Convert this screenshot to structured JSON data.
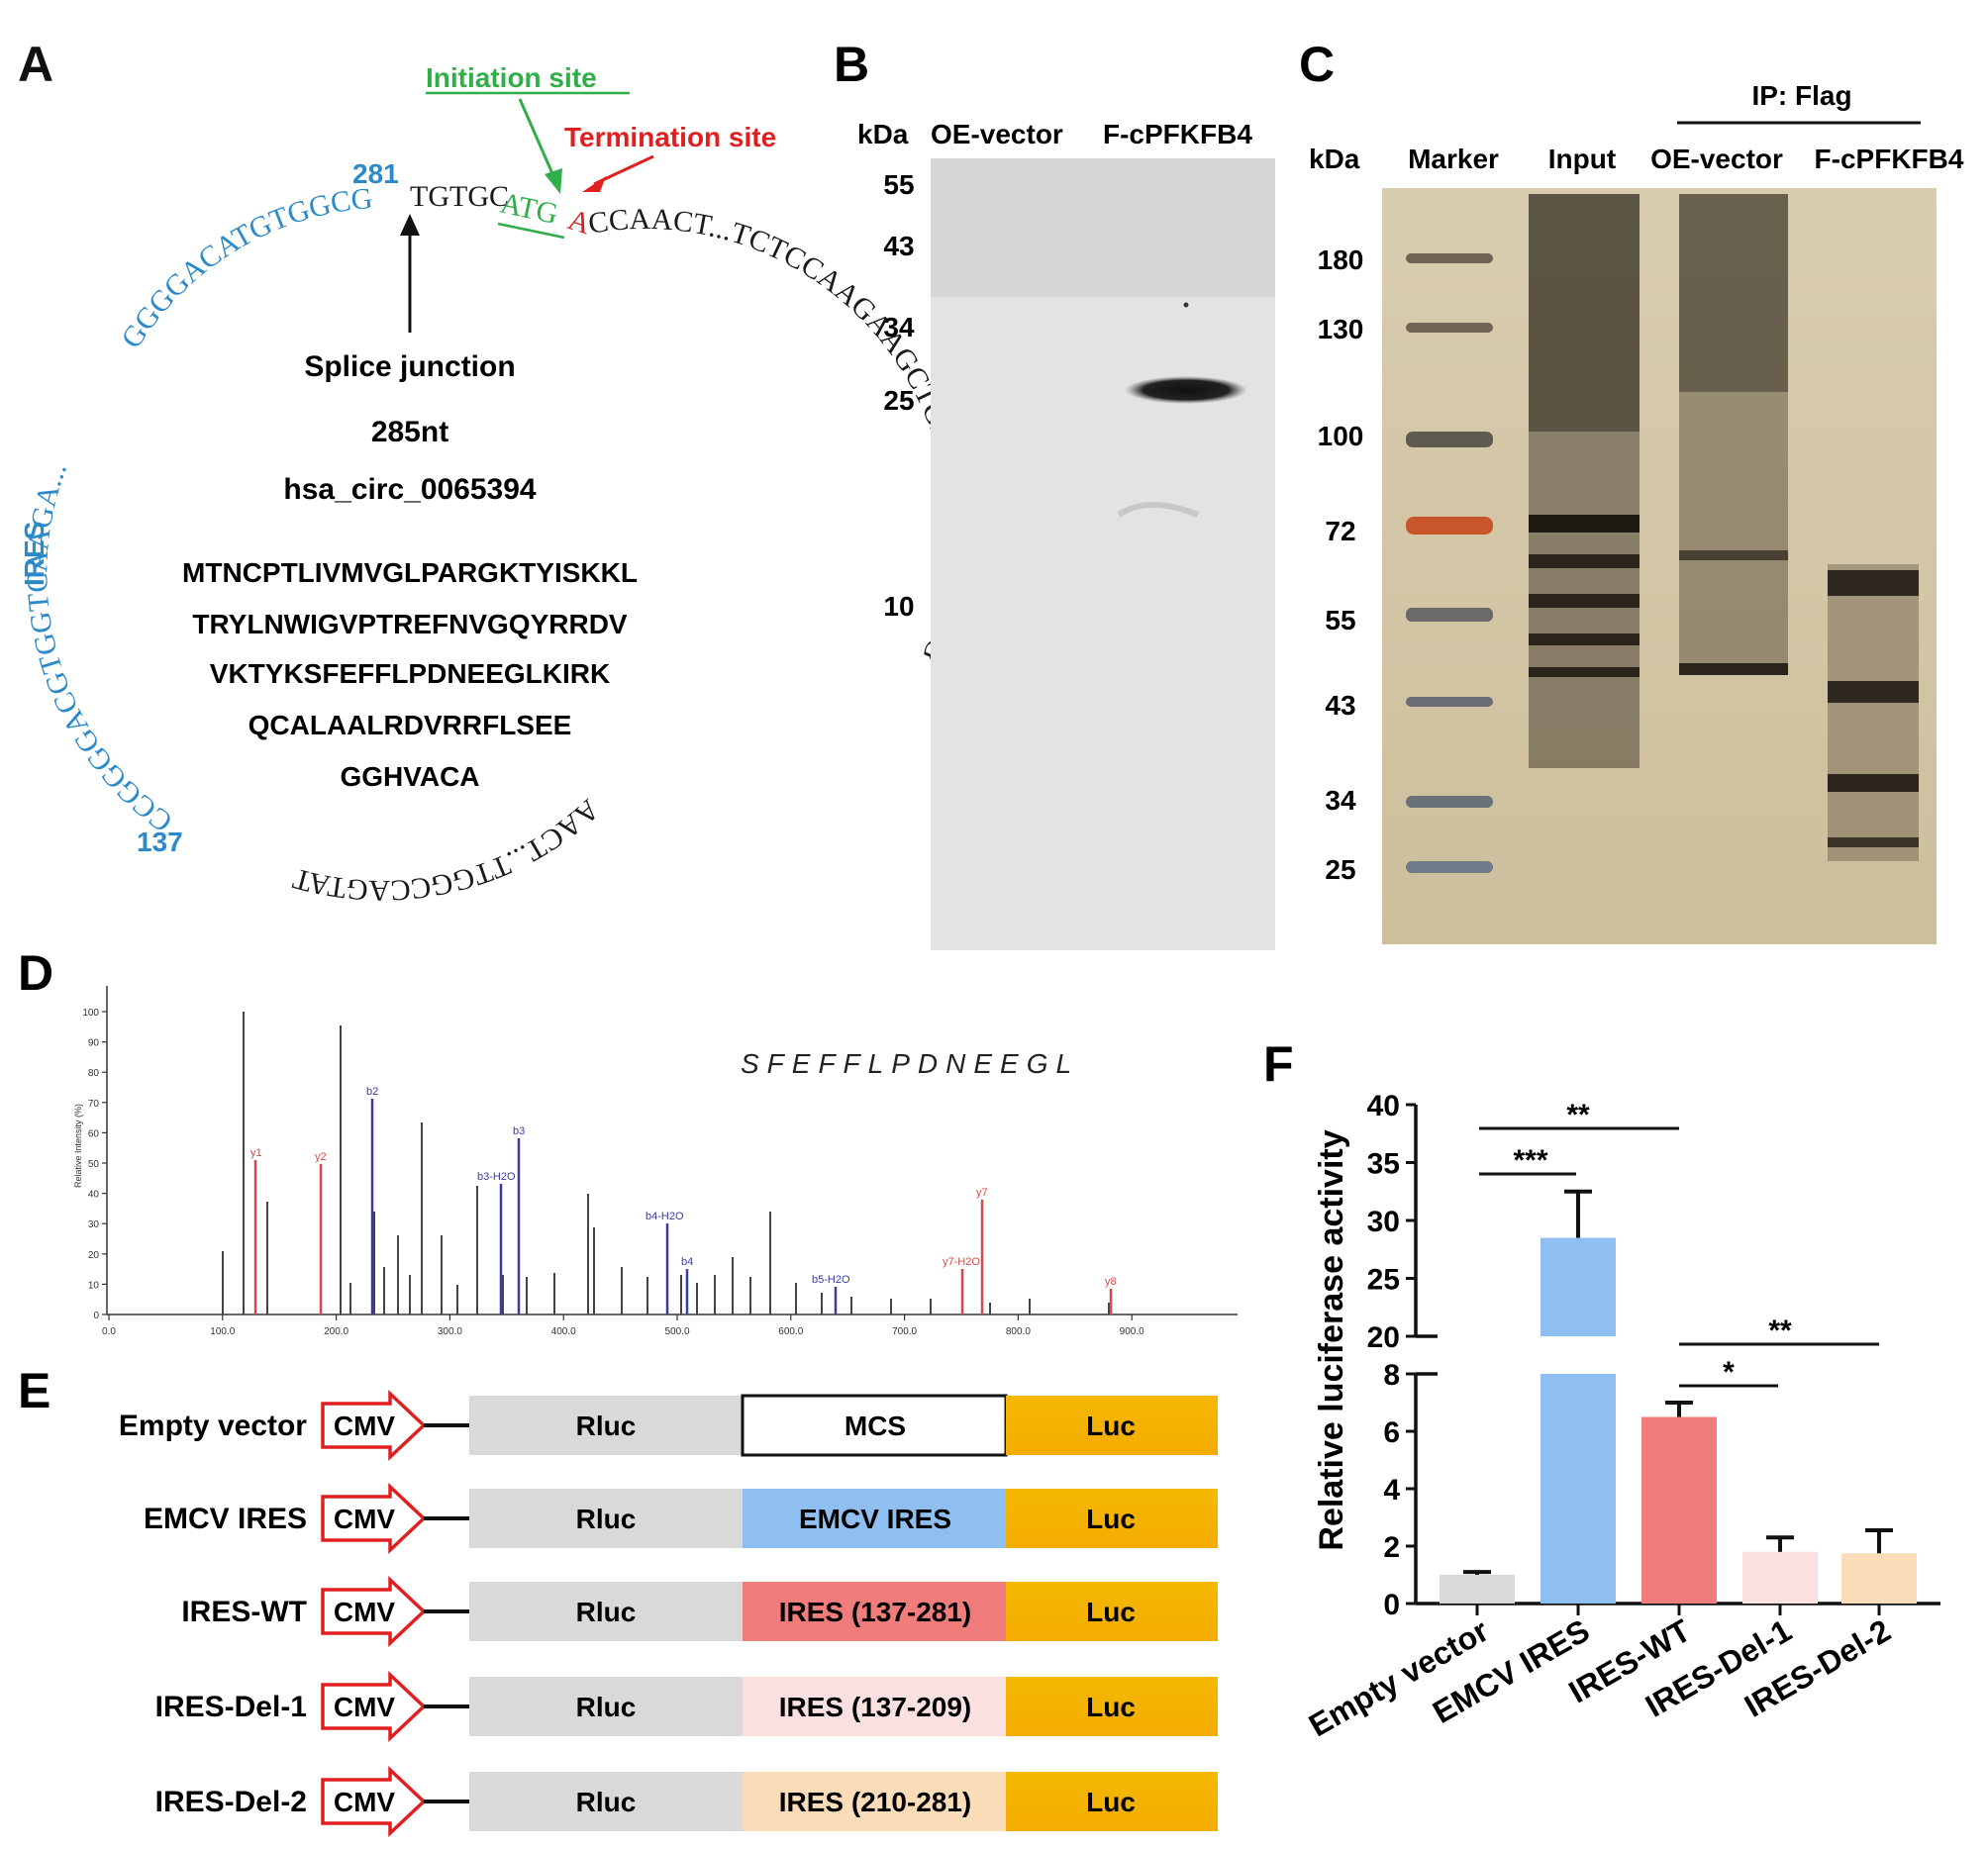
{
  "panels": {
    "A": {
      "letter": "A",
      "initiation_site": "Initiation site",
      "termination_site": "Termination site",
      "pos_281": "281",
      "pos_137": "137",
      "ires_label": "IRES",
      "seq_top_blue": "GGGGACATGTGGCG",
      "seq_top_black": "TGTGC",
      "seq_atg": "ATG",
      "seq_a": "A",
      "seq_right": "CCAACT...TCTCCAAGAAGCTGACTCGATACCTG",
      "seq_bottom": "AACT...TTGGCCAGTAT",
      "seq_left_blue": "CCGGGGACGTGGTCAAGA...",
      "splice_junction": "Splice junction",
      "length": "285nt",
      "circ_id": "hsa_circ_0065394",
      "peptide_lines": [
        "MTNCPTLIVMVGLPARGKTYISKKL",
        "TRYLNWIGVPTREFNVGQYRRDV",
        "VKTYKSFEFFLPDNEEGLKIRK",
        "QCALAALRDVRRFLSEE",
        "GGHVACA"
      ]
    },
    "B": {
      "letter": "B",
      "unit": "kDa",
      "lanes": [
        "OE-vector",
        "F-cPFKFB4"
      ],
      "markers": [
        "55",
        "43",
        "34",
        "25",
        "10"
      ]
    },
    "C": {
      "letter": "C",
      "ip_label": "IP: Flag",
      "unit": "kDa",
      "lanes": [
        "Marker",
        "Input",
        "OE-vector",
        "F-cPFKFB4"
      ],
      "markers": [
        "180",
        "130",
        "100",
        "72",
        "55",
        "43",
        "34",
        "25"
      ]
    },
    "D": {
      "letter": "D",
      "peptide": "SFEFFLPDNEEGL",
      "y_ticks": [
        "0",
        "10",
        "20",
        "30",
        "40",
        "50",
        "60",
        "70",
        "80",
        "90",
        "100"
      ],
      "x_ticks": [
        "0.0",
        "100.0",
        "200.0",
        "300.0",
        "400.0",
        "500.0",
        "600.0",
        "700.0",
        "800.0",
        "900.0"
      ],
      "ylabel": "Relative Intensity (%)",
      "peak_labels": [
        "y1",
        "y2",
        "b2",
        "b3-H2O",
        "b3",
        "b4-H2O",
        "b4",
        "b5-H2O",
        "y7-H2O",
        "y7",
        "y8"
      ]
    },
    "E": {
      "letter": "E",
      "promoter": "CMV",
      "constructs": [
        {
          "name": "Empty vector",
          "rluc": "Rluc",
          "insert": "MCS",
          "insert_color": "#ffffff",
          "luc": "Luc"
        },
        {
          "name": "EMCV IRES",
          "rluc": "Rluc",
          "insert": "EMCV IRES",
          "insert_color": "#8fbff0",
          "luc": "Luc"
        },
        {
          "name": "IRES-WT",
          "rluc": "Rluc",
          "insert": "IRES (137-281)",
          "insert_color": "#f07c7c",
          "luc": "Luc"
        },
        {
          "name": "IRES-Del-1",
          "rluc": "Rluc",
          "insert": "IRES (137-209)",
          "insert_color": "#fbe0e0",
          "luc": "Luc"
        },
        {
          "name": "IRES-Del-2",
          "rluc": "Rluc",
          "insert": "IRES (210-281)",
          "insert_color": "#fbdcb8",
          "luc": "Luc"
        }
      ],
      "rluc_color": "#d9d9d9",
      "luc_color": "#f5b800"
    },
    "F": {
      "letter": "F",
      "sig_labels": [
        "**",
        "***",
        "*",
        "**"
      ]
    }
  },
  "chart_data": {
    "type": "bar",
    "ylabel": "Relative luciferase activity",
    "categories": [
      "Empty vector",
      "EMCV IRES",
      "IRES-WT",
      "IRES-Del-1",
      "IRES-Del-2"
    ],
    "values": [
      1.0,
      28.5,
      6.5,
      1.8,
      1.75
    ],
    "errors": [
      0.1,
      4.0,
      0.5,
      0.5,
      0.8
    ],
    "colors": [
      "#d9d9d9",
      "#8fbff0",
      "#f07c7c",
      "#fbe0e0",
      "#fbdcb8"
    ],
    "axis_break": [
      8,
      20
    ],
    "lower_ticks": [
      "0",
      "2",
      "4",
      "6",
      "8"
    ],
    "upper_ticks": [
      "20",
      "25",
      "30",
      "35",
      "40"
    ],
    "ylim": [
      0,
      40
    ]
  }
}
